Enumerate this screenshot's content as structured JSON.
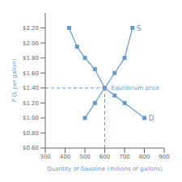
{
  "chart_data": {
    "type": "line",
    "xlabel": "Quantity of Gasoline (millions of gallons)",
    "ylabel": "P ($ per gallon)",
    "series": [
      {
        "x": [
          500,
          550,
          600,
          650,
          700,
          740
        ],
        "values": [
          1.0,
          1.2,
          1.4,
          1.6,
          1.8,
          2.2
        ],
        "color": "#6699cc",
        "marker": "square",
        "line_style": "solid"
      },
      {
        "x": [
          420,
          460,
          500,
          550,
          600,
          650,
          700,
          800
        ],
        "values": [
          2.2,
          1.95,
          1.8,
          1.65,
          1.4,
          1.3,
          1.2,
          1.0
        ],
        "color": "#6699cc",
        "marker": "square",
        "line_style": "solid"
      }
    ],
    "equilibrium": {
      "x": 600,
      "y": 1.4,
      "color": "#6699cc",
      "line_style": "dashed"
    },
    "annotations": [
      {
        "text": "S",
        "x": 740,
        "y": 2.2,
        "color": "#6699cc"
      },
      {
        "text": "D",
        "x": 800,
        "y": 1.0,
        "color": "#6699cc"
      },
      {
        "text": "Equilibrium price",
        "x": 600,
        "y": 1.4,
        "color": "#6699cc"
      }
    ],
    "xlim": [
      300,
      900
    ],
    "ylim": [
      0.6,
      2.4
    ],
    "xticks": [
      300,
      400,
      500,
      600,
      700,
      800,
      900
    ],
    "yticks": [
      {
        "value": 0.6,
        "label": "$0.60"
      },
      {
        "value": 0.8,
        "label": "$0.80"
      },
      {
        "value": 1.0,
        "label": "$1.00"
      },
      {
        "value": 1.2,
        "label": "$1.20"
      },
      {
        "value": 1.4,
        "label": "$1.40"
      },
      {
        "value": 1.6,
        "label": "$1.60"
      },
      {
        "value": 1.8,
        "label": "$1.80"
      },
      {
        "value": 2.0,
        "label": "$2.00"
      },
      {
        "value": 2.2,
        "label": "$2.20"
      }
    ],
    "grid": false
  }
}
